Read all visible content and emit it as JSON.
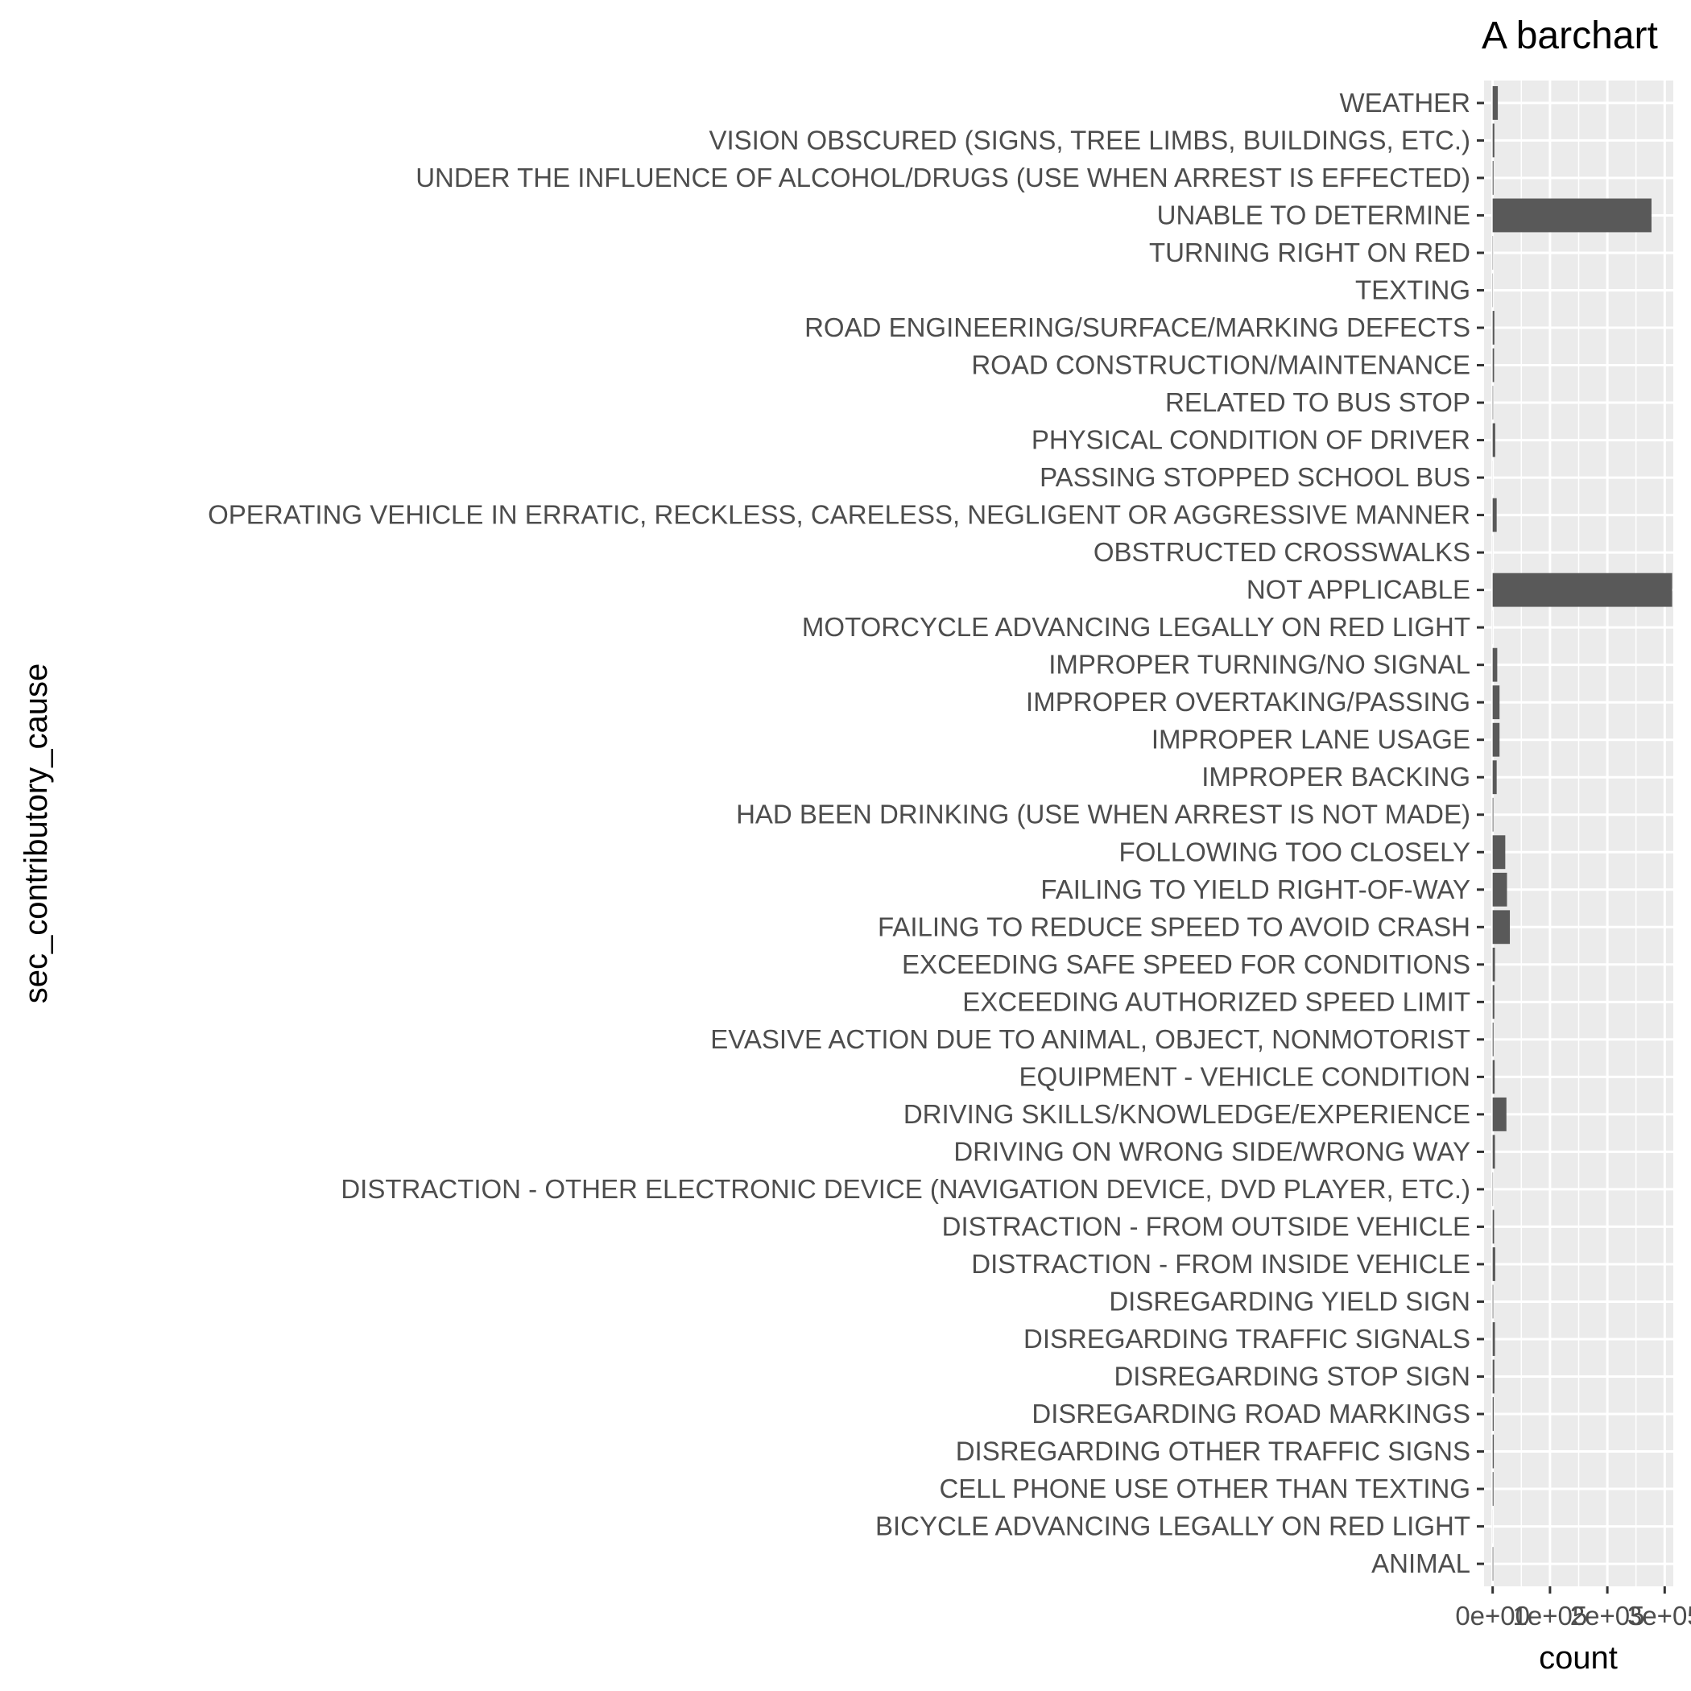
{
  "chart_data": {
    "type": "bar",
    "orientation": "horizontal",
    "title": "A barchart",
    "xlabel": "count",
    "ylabel": "sec_contributory_cause",
    "grid": true,
    "xlim": [
      0,
      300000
    ],
    "x_ticks": [
      0,
      100000,
      200000,
      300000
    ],
    "x_tick_labels": [
      "0e+00",
      "1e+05",
      "2e+05",
      "3e+05"
    ],
    "categories": [
      "ANIMAL",
      "BICYCLE ADVANCING LEGALLY ON RED LIGHT",
      "CELL PHONE USE OTHER THAN TEXTING",
      "DISREGARDING OTHER TRAFFIC SIGNS",
      "DISREGARDING ROAD MARKINGS",
      "DISREGARDING STOP SIGN",
      "DISREGARDING TRAFFIC SIGNALS",
      "DISREGARDING YIELD SIGN",
      "DISTRACTION - FROM INSIDE VEHICLE",
      "DISTRACTION - FROM OUTSIDE VEHICLE",
      "DISTRACTION - OTHER ELECTRONIC DEVICE (NAVIGATION DEVICE, DVD PLAYER, ETC.)",
      "DRIVING ON WRONG SIDE/WRONG WAY",
      "DRIVING SKILLS/KNOWLEDGE/EXPERIENCE",
      "EQUIPMENT - VEHICLE CONDITION",
      "EVASIVE ACTION DUE TO ANIMAL, OBJECT, NONMOTORIST",
      "EXCEEDING AUTHORIZED SPEED LIMIT",
      "EXCEEDING SAFE SPEED FOR CONDITIONS",
      "FAILING TO REDUCE SPEED TO AVOID CRASH",
      "FAILING TO YIELD RIGHT-OF-WAY",
      "FOLLOWING TOO CLOSELY",
      "HAD BEEN DRINKING (USE WHEN ARREST IS NOT MADE)",
      "IMPROPER BACKING",
      "IMPROPER LANE USAGE",
      "IMPROPER OVERTAKING/PASSING",
      "IMPROPER TURNING/NO SIGNAL",
      "MOTORCYCLE ADVANCING LEGALLY ON RED LIGHT",
      "NOT APPLICABLE",
      "OBSTRUCTED CROSSWALKS",
      "OPERATING VEHICLE IN ERRATIC, RECKLESS, CARELESS, NEGLIGENT OR AGGRESSIVE MANNER",
      "PASSING STOPPED SCHOOL BUS",
      "PHYSICAL CONDITION OF DRIVER",
      "RELATED TO BUS STOP",
      "ROAD CONSTRUCTION/MAINTENANCE",
      "ROAD ENGINEERING/SURFACE/MARKING DEFECTS",
      "TEXTING",
      "TURNING RIGHT ON RED",
      "UNABLE TO DETERMINE",
      "UNDER THE INFLUENCE OF ALCOHOL/DRUGS (USE WHEN ARREST IS EFFECTED)",
      "VISION OBSCURED (SIGNS, TREE LIMBS, BUILDINGS, ETC.)",
      "WEATHER"
    ],
    "values": [
      1000,
      100,
      1500,
      2000,
      1800,
      3000,
      4000,
      1000,
      4500,
      2500,
      600,
      4000,
      24000,
      3500,
      1500,
      3000,
      4000,
      30000,
      25000,
      22000,
      1200,
      7000,
      12000,
      12000,
      8000,
      100,
      313000,
      100,
      7000,
      100,
      4500,
      800,
      2500,
      3000,
      500,
      600,
      277000,
      1500,
      3000,
      9000
    ],
    "colors": {
      "bar": "#595959",
      "panel": "#ebebeb",
      "grid": "#ffffff"
    }
  }
}
